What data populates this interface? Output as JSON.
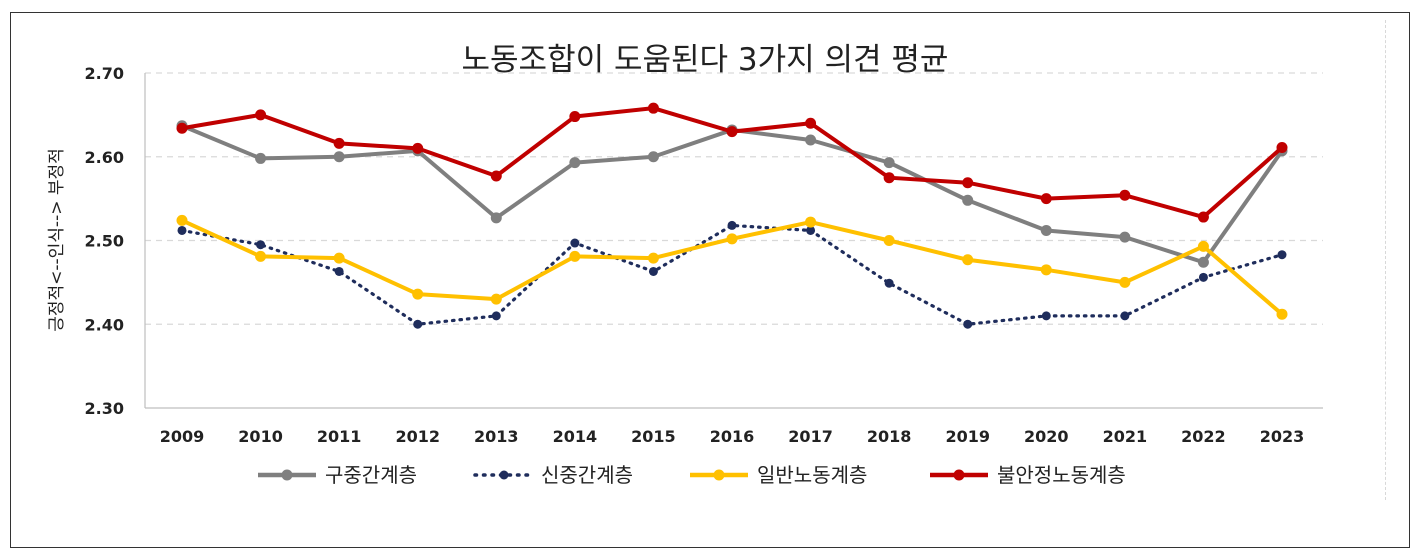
{
  "chart_data": {
    "type": "line",
    "title": "노동조합이 도움된다 3가지 의견 평균",
    "xlabel": "",
    "ylabel": "긍정적<--인식--> 부정적",
    "ylim": [
      2.3,
      2.7
    ],
    "yticks": [
      "2.70",
      "2.60",
      "2.50",
      "2.40",
      "2.30"
    ],
    "ytick_values": [
      2.7,
      2.6,
      2.5,
      2.4,
      2.3
    ],
    "grid": true,
    "legend_position": "bottom",
    "categories": [
      "2009",
      "2010",
      "2011",
      "2012",
      "2013",
      "2014",
      "2015",
      "2016",
      "2017",
      "2018",
      "2019",
      "2020",
      "2021",
      "2022",
      "2023"
    ],
    "series": [
      {
        "name": "구중간계층",
        "color": "#7f7f7f",
        "style": "solid",
        "values": [
          2.637,
          2.598,
          2.6,
          2.607,
          2.527,
          2.593,
          2.6,
          2.632,
          2.62,
          2.593,
          2.548,
          2.512,
          2.504,
          2.474,
          2.607
        ]
      },
      {
        "name": "신중간계층",
        "color": "#1f2d5c",
        "style": "dotted",
        "values": [
          2.512,
          2.495,
          2.463,
          2.4,
          2.41,
          2.497,
          2.463,
          2.518,
          2.512,
          2.449,
          2.4,
          2.41,
          2.41,
          2.456,
          2.483
        ]
      },
      {
        "name": "일반노동계층",
        "color": "#ffc000",
        "style": "solid",
        "values": [
          2.524,
          2.481,
          2.479,
          2.436,
          2.43,
          2.481,
          2.479,
          2.502,
          2.522,
          2.5,
          2.477,
          2.465,
          2.45,
          2.493,
          2.412
        ]
      },
      {
        "name": "불안정노동계층",
        "color": "#c00000",
        "style": "solid",
        "values": [
          2.634,
          2.65,
          2.616,
          2.61,
          2.577,
          2.648,
          2.658,
          2.63,
          2.64,
          2.575,
          2.569,
          2.55,
          2.554,
          2.528,
          2.611
        ]
      }
    ]
  }
}
